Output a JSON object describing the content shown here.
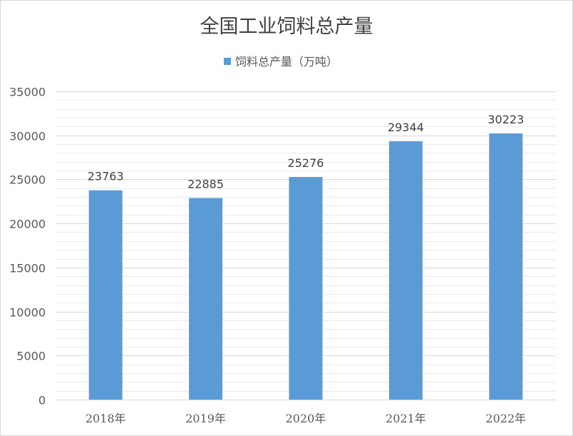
{
  "chart_data": {
    "type": "bar",
    "title": "全国工业饲料总产量",
    "categories": [
      "2018年",
      "2019年",
      "2020年",
      "2021年",
      "2022年"
    ],
    "series": [
      {
        "name": "饲料总产量（万吨）",
        "values": [
          23763,
          22885,
          25276,
          29344,
          30223
        ]
      }
    ],
    "ylim": [
      0,
      35000
    ],
    "yticks": [
      0,
      5000,
      10000,
      15000,
      20000,
      25000,
      30000,
      35000
    ],
    "grid": true,
    "legend": "top",
    "colors": {
      "bar": "#5b9bd5"
    }
  }
}
